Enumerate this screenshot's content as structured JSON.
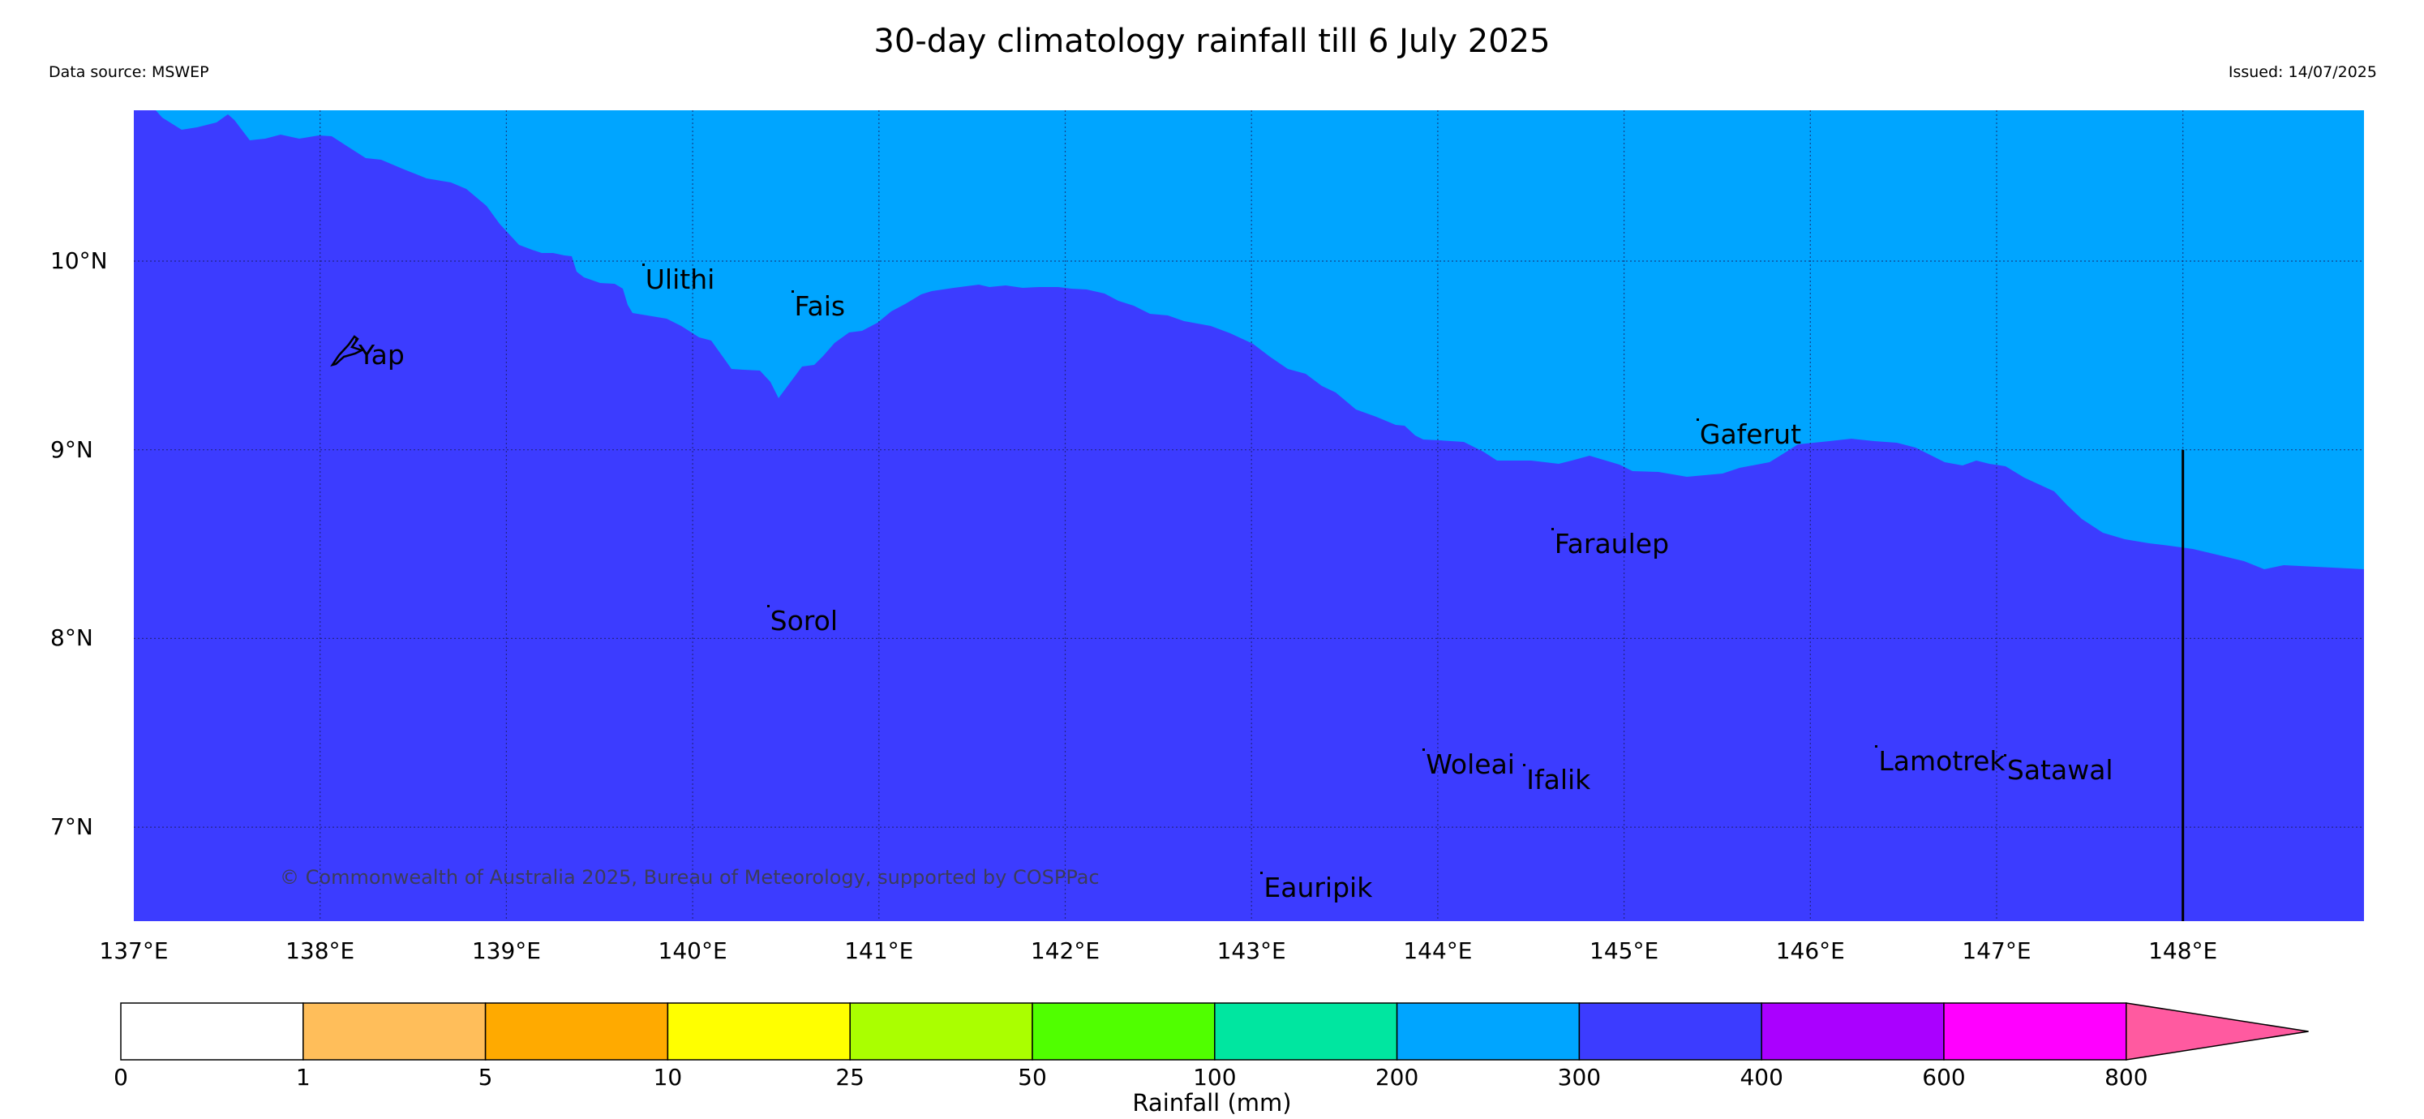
{
  "header": {
    "title": "30-day climatology rainfall till 6 July 2025",
    "data_source": "Data source: MSWEP",
    "issued": "Issued: 14/07/2025"
  },
  "map": {
    "extent": {
      "lon_min": 137.0,
      "lon_max": 149.0,
      "lat_min": 6.5,
      "lat_max": 10.8
    },
    "colors": {
      "upper_region": "#00a5ff",
      "lower_region": "#3c3cff",
      "gridline": "#1a1a5a"
    },
    "upper_region_class": "200-300 mm",
    "lower_region_class": "300-400 mm",
    "lat_ticks": [
      {
        "value": 10,
        "label": "10°N"
      },
      {
        "value": 9,
        "label": "9°N"
      },
      {
        "value": 8,
        "label": "8°N"
      },
      {
        "value": 7,
        "label": "7°N"
      }
    ],
    "lon_ticks": [
      {
        "value": 137,
        "label": "137°E"
      },
      {
        "value": 138,
        "label": "138°E"
      },
      {
        "value": 139,
        "label": "139°E"
      },
      {
        "value": 140,
        "label": "140°E"
      },
      {
        "value": 141,
        "label": "141°E"
      },
      {
        "value": 142,
        "label": "142°E"
      },
      {
        "value": 143,
        "label": "143°E"
      },
      {
        "value": 144,
        "label": "144°E"
      },
      {
        "value": 145,
        "label": "145°E"
      },
      {
        "value": 146,
        "label": "146°E"
      },
      {
        "value": 147,
        "label": "147°E"
      },
      {
        "value": 148,
        "label": "148°E"
      }
    ],
    "places": [
      {
        "name": "Yap",
        "lon": 138.18,
        "lat": 9.5
      },
      {
        "name": "Ulithi",
        "lon": 139.72,
        "lat": 9.9
      },
      {
        "name": "Fais",
        "lon": 140.52,
        "lat": 9.76
      },
      {
        "name": "Sorol",
        "lon": 140.39,
        "lat": 8.09
      },
      {
        "name": "Gaferut",
        "lon": 145.38,
        "lat": 9.08
      },
      {
        "name": "Faraulep",
        "lon": 144.6,
        "lat": 8.5
      },
      {
        "name": "Woleai",
        "lon": 143.91,
        "lat": 7.33
      },
      {
        "name": "Ifalik",
        "lon": 144.45,
        "lat": 7.25
      },
      {
        "name": "Lamotrek",
        "lon": 146.34,
        "lat": 7.35
      },
      {
        "name": "Satawal",
        "lon": 147.03,
        "lat": 7.3
      },
      {
        "name": "Eauripik",
        "lon": 143.04,
        "lat": 6.68
      }
    ],
    "boundary_line": {
      "lon": 148.0,
      "lat_from": 9.0,
      "lat_to": 6.5
    },
    "copyright": "© Commonwealth of Australia 2025, Bureau of Meteorology, supported by COSPPac"
  },
  "colorbar": {
    "title": "Rainfall (mm)",
    "bins": [
      {
        "from": "0",
        "to": "1",
        "color": "#ffffff"
      },
      {
        "from": "1",
        "to": "5",
        "color": "#ffbe5a"
      },
      {
        "from": "5",
        "to": "10",
        "color": "#ffaa00"
      },
      {
        "from": "10",
        "to": "25",
        "color": "#ffff00"
      },
      {
        "from": "25",
        "to": "50",
        "color": "#aaff00"
      },
      {
        "from": "50",
        "to": "100",
        "color": "#50ff00"
      },
      {
        "from": "100",
        "to": "200",
        "color": "#00e6a0"
      },
      {
        "from": "200",
        "to": "300",
        "color": "#00a5ff"
      },
      {
        "from": "300",
        "to": "400",
        "color": "#3c3cff"
      },
      {
        "from": "400",
        "to": "600",
        "color": "#aa00ff"
      },
      {
        "from": "600",
        "to": "800",
        "color": "#ff00ff"
      },
      {
        "from": "800",
        "to": "",
        "color": "#ff5aa0"
      }
    ],
    "labels": [
      "0",
      "1",
      "5",
      "10",
      "25",
      "50",
      "100",
      "200",
      "300",
      "400",
      "600",
      "800"
    ]
  }
}
